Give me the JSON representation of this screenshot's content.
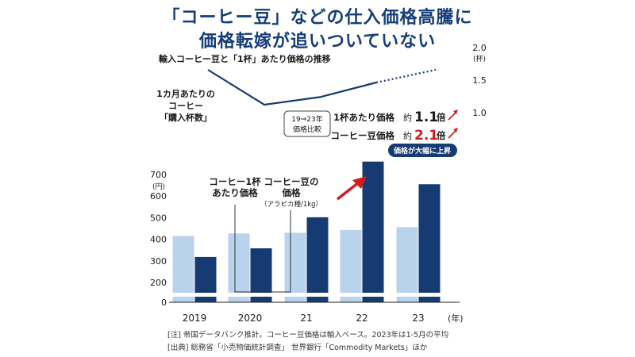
{
  "title_line1": "「コーヒー豆」などの仕入価格高騰に",
  "title_line2": "価格転嫁が追いついていない",
  "chart_data": [
    {
      "type": "line",
      "title": "輸入コーヒー豆と「1杯」あたり価格の推移",
      "series_label": [
        "1カ月あたりの",
        "コーヒー",
        "「購入杯数」"
      ],
      "x": [
        "2019",
        "2020",
        "21",
        "22",
        "23"
      ],
      "values": [
        1.65,
        1.1,
        1.22,
        1.45,
        1.65
      ],
      "solid_until": "22",
      "dotted_after": "22",
      "y_unit": "(杯)",
      "y_ticks": [
        "2.0",
        "1.5",
        "1.0"
      ],
      "ylim": [
        0.9,
        2.1
      ],
      "comparison_box": [
        "19⇒23年",
        "価格比較"
      ],
      "ratios": [
        {
          "label": "1杯あたり価格",
          "prefix": "約",
          "value": "1.1",
          "suffix": "倍",
          "color": "#1b1b1b"
        },
        {
          "label": "コーヒー豆価格",
          "prefix": "約",
          "value": "2.1",
          "suffix": "倍",
          "color": "#d01c1c"
        }
      ],
      "badge": "価格が大幅に上昇"
    },
    {
      "type": "bar",
      "categories": [
        "2019",
        "2020",
        "21",
        "22",
        "23"
      ],
      "category_suffix": "(年)",
      "series": [
        {
          "name": "コーヒー1杯あたり価格",
          "name_lines": [
            "コーヒー1杯",
            "あたり価格"
          ],
          "color": "#b9d3ec",
          "values": [
            415,
            427,
            430,
            443,
            456
          ]
        },
        {
          "name": "コーヒー豆の価格",
          "name_lines": [
            "コーヒー豆の",
            "価格"
          ],
          "sub": "（アラビカ種/1kg）",
          "color": "#163a72",
          "values": [
            318,
            358,
            502,
            760,
            655
          ]
        }
      ],
      "y_unit": "(円)",
      "y_ticks": [
        700,
        600,
        500,
        400,
        300,
        200,
        0
      ],
      "ylim": [
        0,
        760
      ]
    }
  ],
  "notes": {
    "note": "[注] 帝国データバンク推計。コーヒー豆価格は輸入ベース。2023年は1-5月の平均",
    "source": "[出典] 総務省「小売物価統計調査」 世界銀行「Commodity Markets」ほか"
  },
  "colors": {
    "title": "#153d78",
    "dark": "#163a72",
    "light": "#b9d3ec",
    "accent": "#d01c1c"
  }
}
